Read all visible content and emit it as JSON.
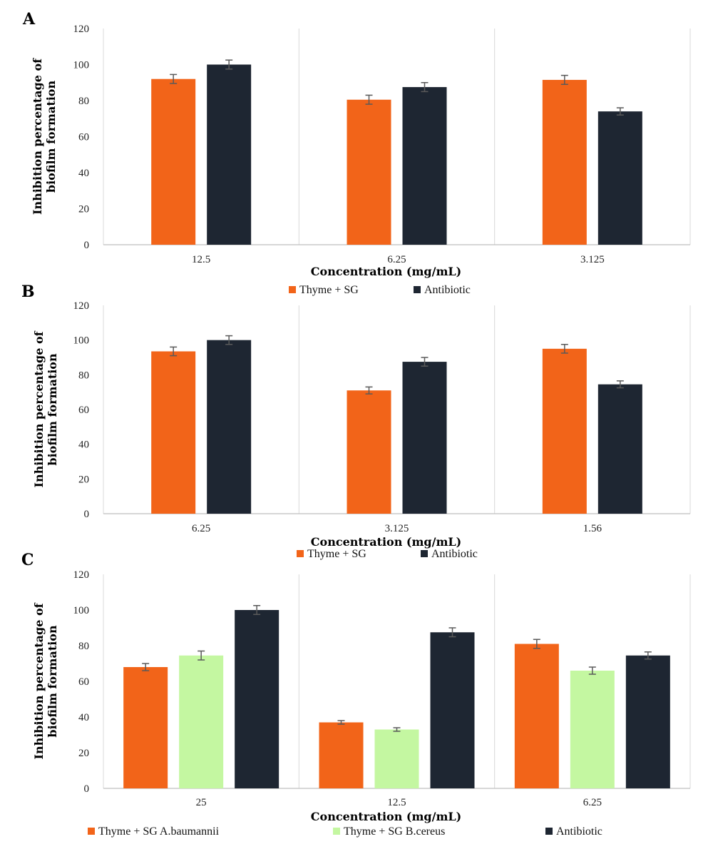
{
  "colors": {
    "thyme_sg": "#F26419",
    "antibiotic": "#1E2632",
    "thyme_sg_bcereus": "#C4F7A1",
    "grid": "#d9d9d9",
    "axis": "#bfbfbf",
    "errorbar": "#5a5a5a"
  },
  "chart_data": [
    {
      "type": "bar",
      "panel": "A",
      "title": "",
      "xlabel": "Concentration (mg/mL)",
      "ylabel": "Inhibition percentage of biofilm formation",
      "ylim": [
        0,
        120
      ],
      "yticks": [
        0,
        20,
        40,
        60,
        80,
        100,
        120
      ],
      "categories": [
        "12.5",
        "6.25",
        "3.125"
      ],
      "series": [
        {
          "name": "Thyme + SG",
          "color": "#F26419",
          "values": [
            92,
            80.5,
            91.5
          ],
          "errors": [
            2.5,
            2.5,
            2.5
          ]
        },
        {
          "name": "Antibiotic",
          "color": "#1E2632",
          "values": [
            100,
            87.5,
            74
          ],
          "errors": [
            2.5,
            2.5,
            2
          ]
        }
      ],
      "legend_position": "bottom"
    },
    {
      "type": "bar",
      "panel": "B",
      "title": "",
      "xlabel": "Concentration (mg/mL)",
      "ylabel": "Inhibition percentage of biofilm formation",
      "ylim": [
        0,
        120
      ],
      "yticks": [
        0,
        20,
        40,
        60,
        80,
        100,
        120
      ],
      "categories": [
        "6.25",
        "3.125",
        "1.56"
      ],
      "series": [
        {
          "name": "Thyme + SG",
          "color": "#F26419",
          "values": [
            93.5,
            71,
            95
          ],
          "errors": [
            2.5,
            2,
            2.5
          ]
        },
        {
          "name": "Antibiotic",
          "color": "#1E2632",
          "values": [
            100,
            87.5,
            74.5
          ],
          "errors": [
            2.5,
            2.5,
            2
          ]
        }
      ],
      "legend_position": "bottom"
    },
    {
      "type": "bar",
      "panel": "C",
      "title": "",
      "xlabel": "Concentration (mg/mL)",
      "ylabel": "Inhibition percentage of biofilm formation",
      "ylim": [
        0,
        120
      ],
      "yticks": [
        0,
        20,
        40,
        60,
        80,
        100,
        120
      ],
      "categories": [
        "25",
        "12.5",
        "6.25"
      ],
      "series": [
        {
          "name": "Thyme + SG A.baumannii",
          "color": "#F26419",
          "values": [
            68,
            37,
            81
          ],
          "errors": [
            2,
            1,
            2.5
          ]
        },
        {
          "name": "Thyme + SG B.cereus",
          "color": "#C4F7A1",
          "values": [
            74.5,
            33,
            66
          ],
          "errors": [
            2.5,
            1,
            2
          ]
        },
        {
          "name": "Antibiotic",
          "color": "#1E2632",
          "values": [
            100,
            87.5,
            74.5
          ],
          "errors": [
            2.5,
            2.5,
            2
          ]
        }
      ],
      "legend_position": "bottom"
    }
  ]
}
